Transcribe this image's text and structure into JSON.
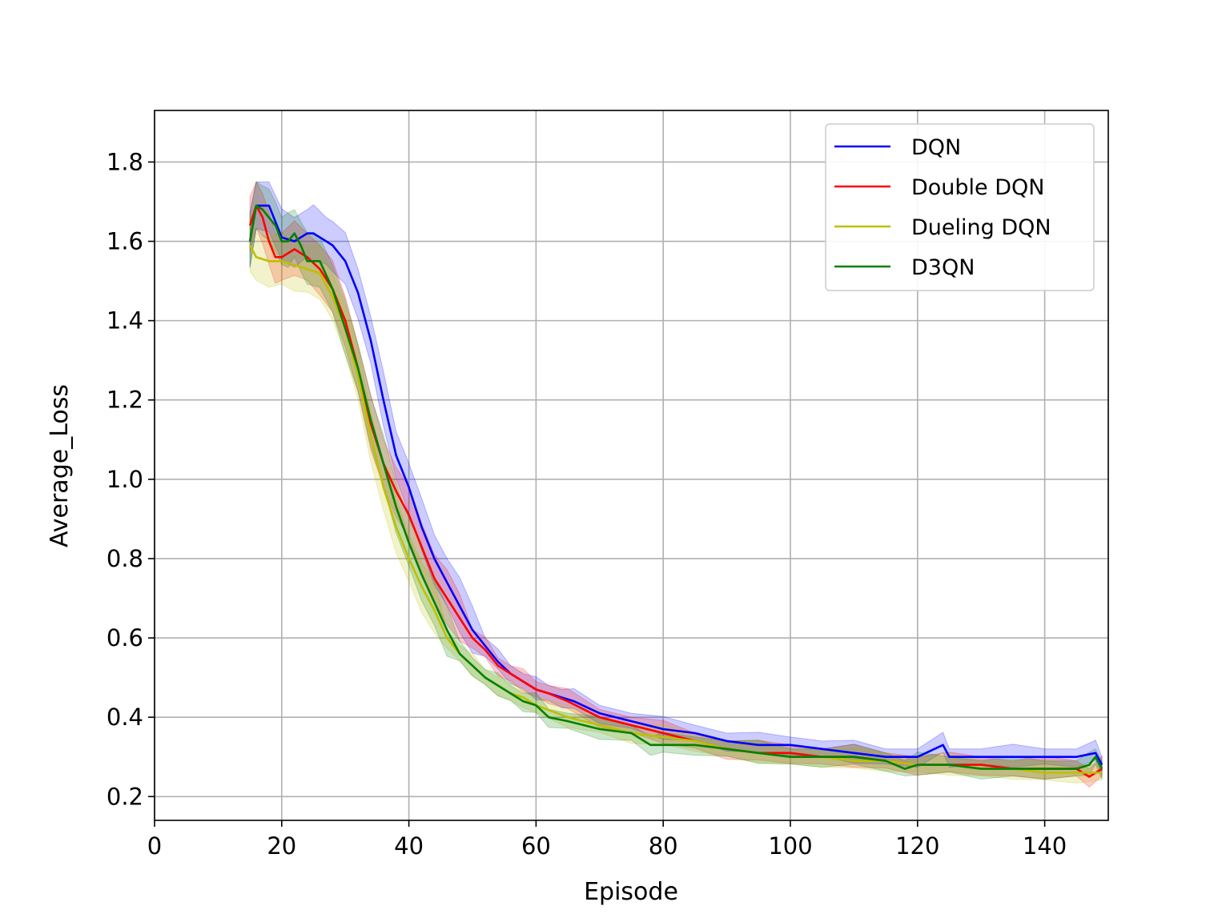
{
  "chart_data": {
    "type": "line",
    "title": "",
    "xlabel": "Episode",
    "ylabel": "Average_Loss",
    "xlim": [
      0,
      150
    ],
    "ylim": [
      0.14,
      1.93
    ],
    "xticks": [
      0,
      20,
      40,
      60,
      80,
      100,
      120,
      140
    ],
    "yticks": [
      0.2,
      0.4,
      0.6,
      0.8,
      1.0,
      1.2,
      1.4,
      1.6,
      1.8
    ],
    "ytick_labels": [
      "0.2",
      "0.4",
      "0.6",
      "0.8",
      "1.0",
      "1.2",
      "1.4",
      "1.6",
      "1.8"
    ],
    "grid": true,
    "legend_position": "top-right",
    "shaded_band": true,
    "series": [
      {
        "name": "DQN",
        "color": "#0000ff",
        "x": [
          15,
          16,
          18,
          20,
          22,
          24,
          25,
          27,
          28,
          30,
          32,
          34,
          36,
          38,
          40,
          42,
          44,
          46,
          48,
          50,
          52,
          54,
          56,
          58,
          60,
          62,
          64,
          66,
          70,
          75,
          80,
          85,
          90,
          95,
          100,
          105,
          110,
          115,
          120,
          124,
          125,
          130,
          135,
          140,
          145,
          148,
          149
        ],
        "y": [
          1.6,
          1.69,
          1.69,
          1.61,
          1.6,
          1.62,
          1.62,
          1.6,
          1.59,
          1.55,
          1.47,
          1.35,
          1.2,
          1.06,
          0.98,
          0.88,
          0.8,
          0.74,
          0.68,
          0.62,
          0.58,
          0.54,
          0.51,
          0.49,
          0.47,
          0.46,
          0.45,
          0.44,
          0.41,
          0.39,
          0.37,
          0.36,
          0.34,
          0.33,
          0.33,
          0.32,
          0.31,
          0.3,
          0.3,
          0.33,
          0.3,
          0.3,
          0.3,
          0.3,
          0.3,
          0.31,
          0.28
        ],
        "band": 0.02
      },
      {
        "name": "Double DQN",
        "color": "#ff0000",
        "x": [
          15,
          16,
          17,
          18,
          19,
          20,
          22,
          24,
          26,
          28,
          30,
          32,
          34,
          36,
          38,
          40,
          42,
          44,
          46,
          48,
          50,
          52,
          54,
          56,
          58,
          60,
          62,
          65,
          70,
          75,
          80,
          85,
          90,
          95,
          100,
          105,
          110,
          115,
          120,
          125,
          130,
          135,
          140,
          145,
          147,
          149
        ],
        "y": [
          1.64,
          1.69,
          1.66,
          1.6,
          1.56,
          1.56,
          1.58,
          1.56,
          1.53,
          1.48,
          1.4,
          1.28,
          1.14,
          1.04,
          0.97,
          0.91,
          0.83,
          0.75,
          0.7,
          0.65,
          0.6,
          0.57,
          0.53,
          0.51,
          0.49,
          0.47,
          0.46,
          0.44,
          0.4,
          0.38,
          0.36,
          0.34,
          0.32,
          0.31,
          0.31,
          0.3,
          0.3,
          0.29,
          0.28,
          0.28,
          0.28,
          0.27,
          0.27,
          0.27,
          0.25,
          0.27
        ],
        "band": 0.02
      },
      {
        "name": "Dueling DQN",
        "color": "#bfbf00",
        "x": [
          15,
          16,
          18,
          20,
          22,
          24,
          26,
          28,
          30,
          32,
          34,
          36,
          38,
          40,
          42,
          44,
          46,
          48,
          50,
          52,
          54,
          56,
          58,
          60,
          65,
          70,
          75,
          80,
          85,
          90,
          95,
          100,
          105,
          110,
          115,
          120,
          125,
          130,
          135,
          140,
          145,
          149
        ],
        "y": [
          1.59,
          1.56,
          1.55,
          1.55,
          1.54,
          1.53,
          1.52,
          1.46,
          1.38,
          1.26,
          1.11,
          0.98,
          0.88,
          0.8,
          0.73,
          0.67,
          0.6,
          0.56,
          0.53,
          0.5,
          0.48,
          0.46,
          0.45,
          0.43,
          0.4,
          0.38,
          0.36,
          0.35,
          0.34,
          0.32,
          0.31,
          0.3,
          0.3,
          0.29,
          0.29,
          0.28,
          0.28,
          0.27,
          0.27,
          0.26,
          0.26,
          0.26
        ],
        "band": 0.02
      },
      {
        "name": "D3QN",
        "color": "#008000",
        "x": [
          15,
          16,
          17,
          18,
          19,
          20,
          21,
          22,
          23,
          24,
          26,
          28,
          30,
          32,
          34,
          36,
          38,
          40,
          42,
          44,
          46,
          48,
          50,
          52,
          54,
          56,
          58,
          60,
          62,
          65,
          70,
          75,
          78,
          80,
          85,
          90,
          95,
          100,
          105,
          110,
          115,
          118,
          120,
          125,
          130,
          135,
          140,
          145,
          147,
          148,
          149
        ],
        "y": [
          1.6,
          1.69,
          1.68,
          1.66,
          1.64,
          1.6,
          1.6,
          1.62,
          1.59,
          1.55,
          1.55,
          1.48,
          1.38,
          1.28,
          1.15,
          1.04,
          0.93,
          0.84,
          0.76,
          0.69,
          0.62,
          0.56,
          0.53,
          0.5,
          0.48,
          0.46,
          0.44,
          0.43,
          0.4,
          0.39,
          0.37,
          0.36,
          0.33,
          0.33,
          0.33,
          0.32,
          0.31,
          0.3,
          0.3,
          0.3,
          0.29,
          0.27,
          0.28,
          0.28,
          0.27,
          0.27,
          0.27,
          0.27,
          0.28,
          0.3,
          0.27
        ],
        "band": 0.02
      }
    ]
  }
}
